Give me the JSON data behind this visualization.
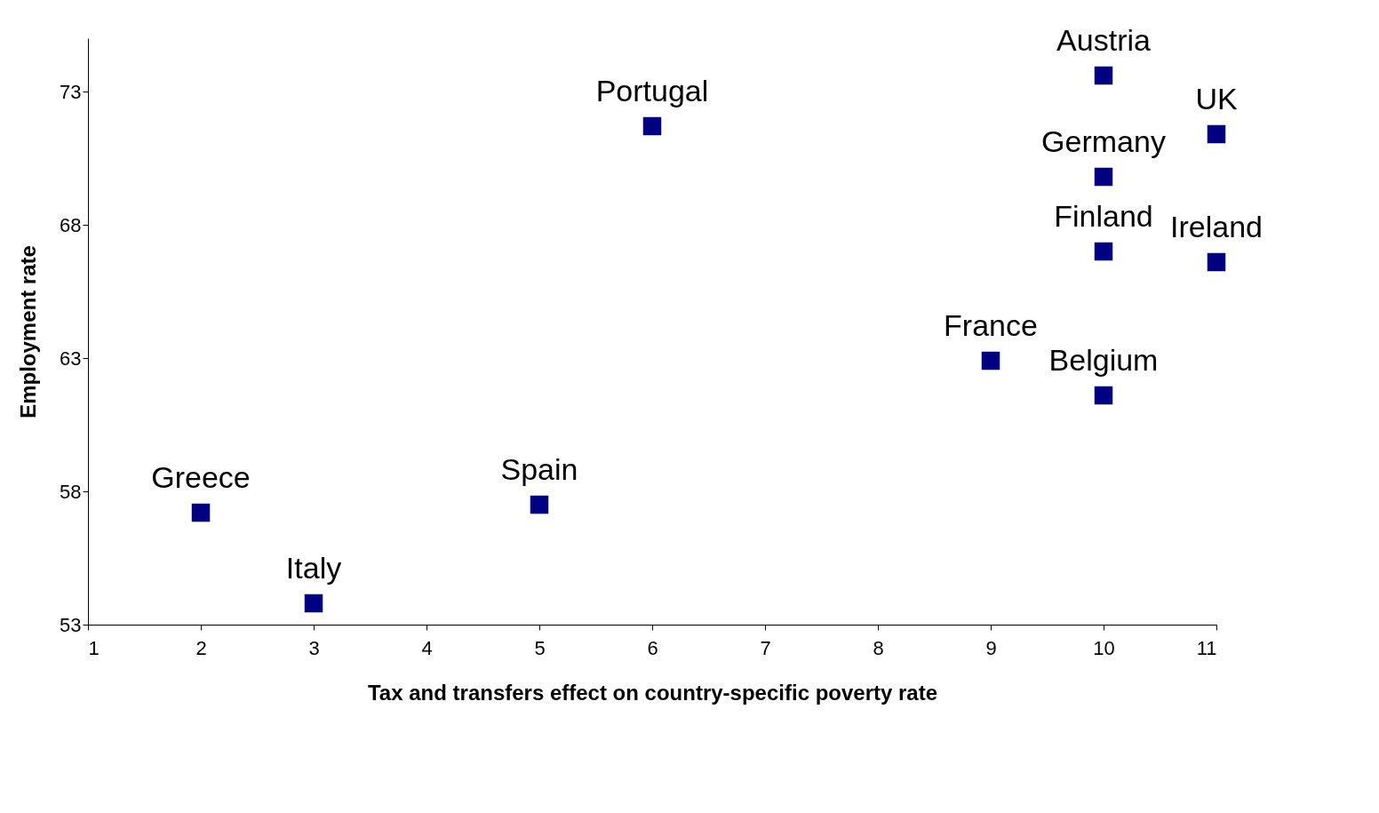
{
  "chart_data": {
    "type": "scatter",
    "xlabel": "Tax and transfers effect on country-specific poverty rate",
    "ylabel": "Employment rate",
    "x": [
      2,
      3,
      5,
      6,
      10,
      11,
      10,
      10,
      11,
      9,
      10
    ],
    "values": [
      57.2,
      53.8,
      57.5,
      71.7,
      73.6,
      71.4,
      69.8,
      67.0,
      66.6,
      62.9,
      61.6
    ],
    "color": "#000080",
    "marker": "square",
    "grid": false,
    "xlim": [
      1,
      11
    ],
    "xticks": [
      1,
      2,
      3,
      4,
      5,
      6,
      7,
      8,
      9,
      10,
      11
    ],
    "ylim": [
      53,
      75
    ],
    "yticks": [
      53,
      58,
      63,
      68,
      73
    ],
    "annotations": [
      {
        "text": "Greece",
        "x": 2,
        "y": 57.2
      },
      {
        "text": "Italy",
        "x": 3,
        "y": 53.8
      },
      {
        "text": "Spain",
        "x": 5,
        "y": 57.5
      },
      {
        "text": "Portugal",
        "x": 6,
        "y": 71.7
      },
      {
        "text": "Austria",
        "x": 10,
        "y": 73.6
      },
      {
        "text": "UK",
        "x": 11,
        "y": 71.4
      },
      {
        "text": "Germany",
        "x": 10,
        "y": 69.8
      },
      {
        "text": "Finland",
        "x": 10,
        "y": 67.0
      },
      {
        "text": "Ireland",
        "x": 11,
        "y": 66.6
      },
      {
        "text": "France",
        "x": 9,
        "y": 62.9
      },
      {
        "text": "Belgium",
        "x": 10,
        "y": 61.6
      }
    ]
  }
}
